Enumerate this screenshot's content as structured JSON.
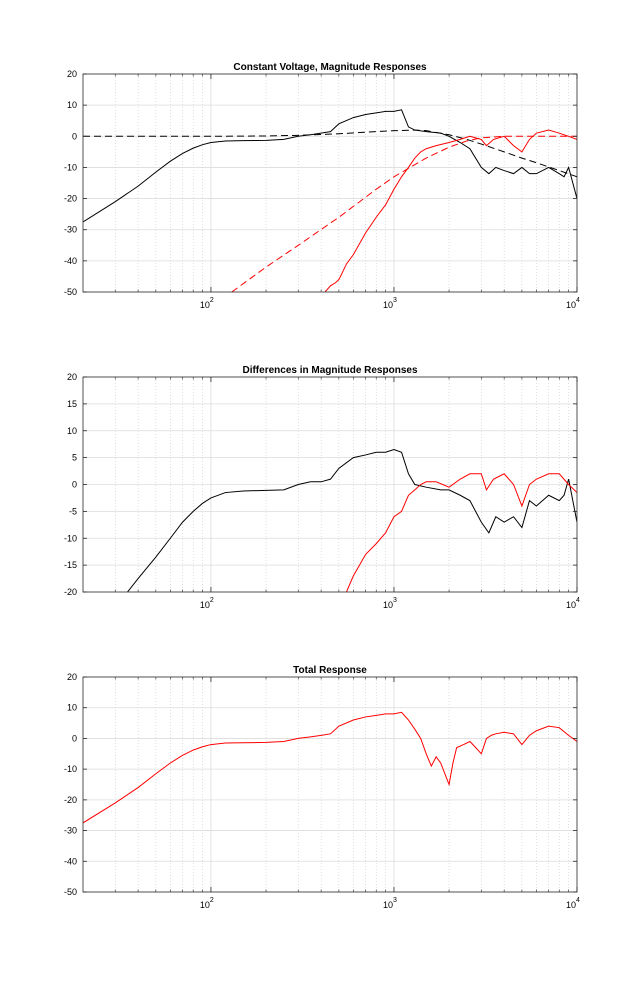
{
  "chart_data": [
    {
      "type": "line",
      "title": "Constant Voltage, Magnitude Responses",
      "xlabel": "",
      "ylabel": "",
      "xscale": "log",
      "xlim": [
        20,
        10000
      ],
      "ylim": [
        -50,
        20
      ],
      "yticks": [
        -50,
        -40,
        -30,
        -20,
        -10,
        0,
        10,
        20
      ],
      "xticks": [
        {
          "base": "10",
          "exp": "2",
          "value": 100
        },
        {
          "base": "10",
          "exp": "3",
          "value": 1000
        },
        {
          "base": "10",
          "exp": "4",
          "value": 10000
        }
      ],
      "grid": true,
      "series": [
        {
          "color": "#000000",
          "style": "solid",
          "x": [
            20,
            30,
            40,
            50,
            60,
            70,
            80,
            90,
            100,
            120,
            150,
            200,
            250,
            300,
            350,
            400,
            450,
            500,
            600,
            700,
            800,
            900,
            1000,
            1100,
            1200,
            1300,
            1500,
            1800,
            2000,
            2300,
            2600,
            3000,
            3300,
            3600,
            4000,
            4500,
            5000,
            5500,
            6000,
            7000,
            8000,
            8500,
            9000,
            10000
          ],
          "y": [
            -27.5,
            -21,
            -16,
            -11.5,
            -8,
            -5.5,
            -3.8,
            -2.7,
            -2,
            -1.5,
            -1.4,
            -1.3,
            -1,
            0,
            0.5,
            1,
            1.5,
            4,
            6,
            7,
            7.5,
            8,
            8,
            8.5,
            3,
            2,
            1.5,
            1,
            0,
            -2,
            -4,
            -10,
            -12,
            -10,
            -11,
            -12,
            -10,
            -12,
            -12,
            -10,
            -12,
            -13,
            -10,
            -20
          ]
        },
        {
          "color": "#000000",
          "style": "dashed",
          "x": [
            20,
            50,
            100,
            200,
            300,
            500,
            800,
            1000,
            1300,
            1500,
            2000,
            2500,
            3000,
            4000,
            5000,
            6000,
            8000,
            10000
          ],
          "y": [
            0,
            0,
            0,
            0.1,
            0.3,
            0.8,
            1.5,
            1.8,
            2,
            1.8,
            0.5,
            -1,
            -2.5,
            -5,
            -7,
            -8.5,
            -11,
            -13
          ]
        },
        {
          "color": "#ff0000",
          "style": "solid",
          "x": [
            420,
            450,
            480,
            500,
            520,
            550,
            600,
            700,
            800,
            900,
            1000,
            1100,
            1200,
            1300,
            1400,
            1500,
            1700,
            2000,
            2300,
            2600,
            3000,
            3200,
            3500,
            4000,
            4500,
            5000,
            5500,
            6000,
            7000,
            8000,
            9000,
            10000
          ],
          "y": [
            -50,
            -48,
            -47,
            -46,
            -44,
            -41,
            -38,
            -31,
            -26,
            -22,
            -17,
            -13,
            -10,
            -7,
            -5,
            -4,
            -3,
            -2,
            -1,
            0,
            -1,
            -3,
            -1,
            0,
            -3,
            -5,
            -1,
            1,
            2,
            1,
            0,
            -1
          ]
        },
        {
          "color": "#ff0000",
          "style": "dashed",
          "x": [
            130,
            200,
            300,
            500,
            800,
            1000,
            1500,
            2000,
            2500,
            3000,
            4000,
            6000,
            10000
          ],
          "y": [
            -50,
            -42,
            -35,
            -26,
            -17,
            -13,
            -7,
            -3.5,
            -1.5,
            -0.5,
            0,
            0,
            0
          ]
        }
      ]
    },
    {
      "type": "line",
      "title": "Differences in Magnitude Responses",
      "xlabel": "",
      "ylabel": "",
      "xscale": "log",
      "xlim": [
        20,
        10000
      ],
      "ylim": [
        -20,
        20
      ],
      "yticks": [
        -20,
        -15,
        -10,
        -5,
        0,
        5,
        10,
        15,
        20
      ],
      "xticks": [
        {
          "base": "10",
          "exp": "2",
          "value": 100
        },
        {
          "base": "10",
          "exp": "3",
          "value": 1000
        },
        {
          "base": "10",
          "exp": "4",
          "value": 10000
        }
      ],
      "grid": true,
      "series": [
        {
          "color": "#000000",
          "style": "solid",
          "x": [
            35,
            40,
            50,
            60,
            70,
            80,
            90,
            100,
            120,
            150,
            200,
            250,
            300,
            350,
            400,
            450,
            500,
            600,
            700,
            800,
            900,
            1000,
            1100,
            1200,
            1300,
            1500,
            1800,
            2000,
            2300,
            2600,
            3000,
            3300,
            3600,
            4000,
            4500,
            5000,
            5500,
            6000,
            7000,
            8000,
            8500,
            9000,
            10000
          ],
          "y": [
            -20,
            -17.5,
            -13.5,
            -10,
            -7,
            -5,
            -3.5,
            -2.5,
            -1.5,
            -1.2,
            -1.1,
            -1,
            0,
            0.5,
            0.5,
            1,
            3,
            5,
            5.5,
            6,
            6,
            6.5,
            6,
            2,
            0,
            -0.5,
            -1,
            -1,
            -2,
            -3,
            -7,
            -9,
            -6,
            -7,
            -6,
            -8,
            -3,
            -4,
            -2,
            -3,
            -2,
            1,
            -7
          ]
        },
        {
          "color": "#ff0000",
          "style": "solid",
          "x": [
            550,
            600,
            700,
            800,
            900,
            1000,
            1100,
            1200,
            1300,
            1400,
            1500,
            1700,
            2000,
            2300,
            2600,
            3000,
            3200,
            3500,
            4000,
            4500,
            5000,
            5500,
            6000,
            7000,
            8000,
            9000,
            10000
          ],
          "y": [
            -20,
            -17,
            -13,
            -11,
            -9,
            -6,
            -5,
            -2,
            -1,
            0,
            0.5,
            0.5,
            -0.5,
            1,
            2,
            2,
            -1,
            1,
            2,
            0,
            -4,
            0,
            1,
            2,
            2,
            0,
            -1.5
          ]
        }
      ]
    },
    {
      "type": "line",
      "title": "Total Response",
      "xlabel": "",
      "ylabel": "",
      "xscale": "log",
      "xlim": [
        20,
        10000
      ],
      "ylim": [
        -50,
        20
      ],
      "yticks": [
        -50,
        -40,
        -30,
        -20,
        -10,
        0,
        10,
        20
      ],
      "xticks": [
        {
          "base": "10",
          "exp": "2",
          "value": 100
        },
        {
          "base": "10",
          "exp": "3",
          "value": 1000
        },
        {
          "base": "10",
          "exp": "4",
          "value": 10000
        }
      ],
      "grid": true,
      "series": [
        {
          "color": "#ff0000",
          "style": "solid",
          "x": [
            20,
            30,
            40,
            50,
            60,
            70,
            80,
            90,
            100,
            120,
            150,
            200,
            250,
            300,
            350,
            400,
            450,
            500,
            600,
            700,
            800,
            900,
            1000,
            1100,
            1200,
            1300,
            1400,
            1500,
            1600,
            1700,
            1800,
            2000,
            2100,
            2200,
            2400,
            2600,
            2800,
            3000,
            3200,
            3400,
            3600,
            4000,
            4500,
            5000,
            5500,
            6000,
            7000,
            8000,
            9000,
            10000
          ],
          "y": [
            -27.5,
            -21,
            -16,
            -11.5,
            -8,
            -5.5,
            -3.8,
            -2.7,
            -2,
            -1.5,
            -1.4,
            -1.3,
            -1,
            0,
            0.5,
            1,
            1.5,
            4,
            6,
            7,
            7.5,
            8,
            8,
            8.5,
            6,
            3,
            0,
            -5,
            -9,
            -6,
            -8,
            -15,
            -8,
            -3,
            -2,
            -1,
            -3,
            -5,
            0,
            1,
            1.5,
            2,
            1.5,
            -2,
            1,
            2.5,
            4,
            3.5,
            1,
            -1
          ]
        }
      ]
    }
  ]
}
